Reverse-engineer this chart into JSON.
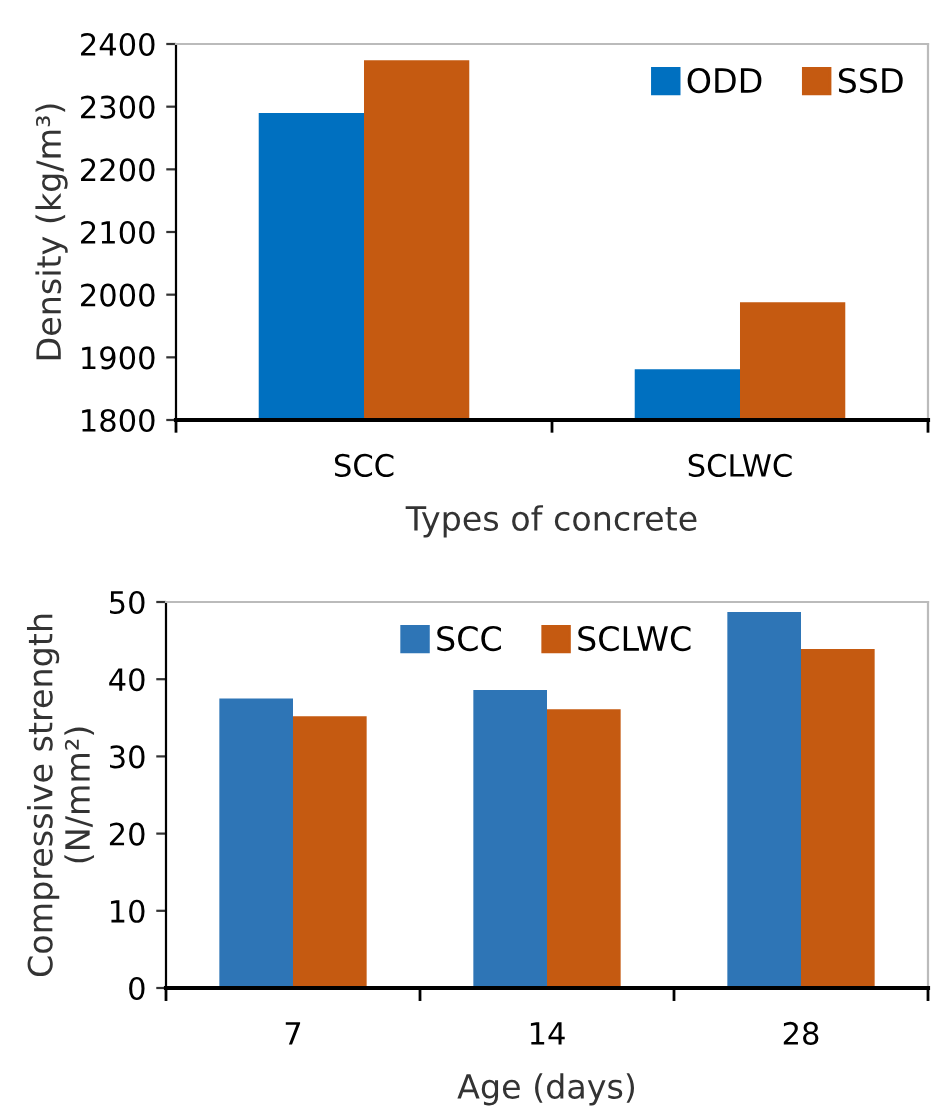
{
  "chart_data": [
    {
      "type": "bar",
      "categories": [
        "SCC",
        "SCLWC"
      ],
      "xlabel": "Types of concrete",
      "ylabel": "Density (kg/m³)",
      "series": [
        {
          "name": "ODD",
          "color": "#0070c0",
          "values": [
            2290,
            1881
          ]
        },
        {
          "name": "SSD",
          "color": "#c55a11",
          "values": [
            2374,
            1988
          ]
        }
      ],
      "ylim": [
        1800,
        2400
      ],
      "yticks": [
        1800,
        1900,
        2000,
        2100,
        2200,
        2300,
        2400
      ],
      "grid": false,
      "legend": "top right"
    },
    {
      "type": "bar",
      "categories": [
        "7",
        "14",
        "28"
      ],
      "xlabel": "Age (days)",
      "ylabel": "Compressive strength\n(N/mm²)",
      "series": [
        {
          "name": "SCC",
          "color": "#2e75b6",
          "values": [
            37.5,
            38.6,
            48.7
          ]
        },
        {
          "name": "SCLWC",
          "color": "#c55a11",
          "values": [
            35.2,
            36.1,
            43.9
          ]
        }
      ],
      "ylim": [
        0,
        50
      ],
      "yticks": [
        0,
        10,
        20,
        30,
        40,
        50
      ],
      "grid": false,
      "legend": "top"
    }
  ]
}
